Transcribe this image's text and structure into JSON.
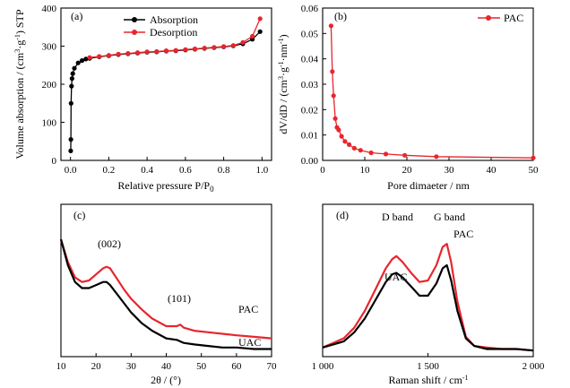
{
  "chart_data": [
    {
      "panel": "(a)",
      "type": "line",
      "xlabel": "Relative pressure P/P",
      "xlabel_sub": "0",
      "ylabel": "Volume absorption / (cm",
      "ylabel_sup": "3",
      "ylabel_mid": "·g",
      "ylabel_sup2": "-1",
      "ylabel_end": ") STP",
      "xlim": [
        -0.05,
        1.05
      ],
      "ylim": [
        0,
        400
      ],
      "xticks": [
        "0.0",
        "0.2",
        "0.4",
        "0.6",
        "0.8",
        "1.0"
      ],
      "yticks": [
        "0",
        "100",
        "200",
        "300",
        "400"
      ],
      "legend_position": "top-center",
      "series": [
        {
          "name": "Absorption",
          "color": "#000000",
          "x": [
            0.001,
            0.002,
            0.003,
            0.005,
            0.008,
            0.012,
            0.02,
            0.04,
            0.06,
            0.08,
            0.1,
            0.15,
            0.2,
            0.25,
            0.3,
            0.35,
            0.4,
            0.45,
            0.5,
            0.55,
            0.6,
            0.65,
            0.7,
            0.75,
            0.8,
            0.85,
            0.9,
            0.95,
            0.99
          ],
          "y": [
            25,
            55,
            150,
            195,
            215,
            228,
            242,
            256,
            262,
            266,
            268,
            272,
            275,
            278,
            280,
            282,
            284,
            285,
            287,
            288,
            290,
            292,
            294,
            296,
            298,
            301,
            306,
            318,
            338
          ]
        },
        {
          "name": "Desorption",
          "color": "#e8262d",
          "x": [
            0.99,
            0.95,
            0.9,
            0.85,
            0.8,
            0.75,
            0.7,
            0.65,
            0.6,
            0.55,
            0.5,
            0.45,
            0.4,
            0.35,
            0.3,
            0.25,
            0.2,
            0.15,
            0.1
          ],
          "y": [
            372,
            326,
            310,
            302,
            299,
            297,
            295,
            293,
            291,
            289,
            288,
            286,
            285,
            283,
            281,
            279,
            276,
            273,
            270
          ]
        }
      ]
    },
    {
      "panel": "(b)",
      "type": "line",
      "xlabel": "Pore dimaeter / nm",
      "ylabel": "dV/dD / (cm",
      "xlim": [
        0,
        50
      ],
      "ylim": [
        0,
        0.06
      ],
      "xticks": [
        "0",
        "10",
        "20",
        "30",
        "40",
        "50"
      ],
      "yticks": [
        "0.00",
        "0.01",
        "0.02",
        "0.03",
        "0.04",
        "0.05",
        "0.06"
      ],
      "legend_position": "top-right",
      "series": [
        {
          "name": "PAC",
          "color": "#e8262d",
          "x": [
            2.0,
            2.3,
            2.6,
            3.0,
            3.4,
            3.8,
            4.5,
            5.3,
            6.3,
            7.5,
            9.0,
            11.5,
            15.0,
            19.5,
            27.0,
            50.0
          ],
          "y": [
            0.053,
            0.035,
            0.0255,
            0.0165,
            0.013,
            0.012,
            0.0095,
            0.0075,
            0.0062,
            0.0048,
            0.004,
            0.003,
            0.0025,
            0.002,
            0.0015,
            0.001
          ]
        }
      ]
    },
    {
      "panel": "(c)",
      "type": "line",
      "xlabel": "2θ / (°)",
      "xlim": [
        10,
        70
      ],
      "ylim": [
        0,
        1
      ],
      "xticks": [
        "10",
        "20",
        "30",
        "40",
        "50",
        "60",
        "70"
      ],
      "annotations": [
        "(002)",
        "(101)"
      ],
      "series": [
        {
          "name": "PAC",
          "color": "#e8262d",
          "x": [
            10,
            12,
            14,
            16,
            18,
            20,
            22,
            23,
            24,
            26,
            28,
            30,
            33,
            36,
            40,
            43,
            44,
            45,
            48,
            52,
            56,
            60,
            65,
            70
          ],
          "y": [
            0.77,
            0.62,
            0.52,
            0.49,
            0.5,
            0.54,
            0.58,
            0.59,
            0.58,
            0.51,
            0.44,
            0.38,
            0.31,
            0.25,
            0.2,
            0.2,
            0.21,
            0.19,
            0.17,
            0.16,
            0.15,
            0.14,
            0.13,
            0.12
          ]
        },
        {
          "name": "UAC",
          "color": "#000000",
          "x": [
            10,
            12,
            14,
            16,
            18,
            20,
            22,
            23,
            24,
            26,
            28,
            30,
            33,
            36,
            40,
            43,
            45,
            48,
            52,
            56,
            60,
            65,
            70
          ],
          "y": [
            0.77,
            0.6,
            0.49,
            0.45,
            0.45,
            0.47,
            0.49,
            0.49,
            0.47,
            0.41,
            0.35,
            0.29,
            0.22,
            0.17,
            0.12,
            0.11,
            0.09,
            0.08,
            0.07,
            0.06,
            0.06,
            0.05,
            0.05
          ]
        }
      ]
    },
    {
      "panel": "(d)",
      "type": "line",
      "xlabel": "Raman shift / cm",
      "xlabel_sup": "-1",
      "xlim": [
        1000,
        2000
      ],
      "ylim": [
        0,
        1
      ],
      "xticks": [
        "1 000",
        "1 500",
        "2 000"
      ],
      "annotations": [
        "D band",
        "G band"
      ],
      "series": [
        {
          "name": "PAC",
          "color": "#e8262d",
          "x": [
            1000,
            1050,
            1100,
            1150,
            1200,
            1250,
            1300,
            1330,
            1350,
            1380,
            1420,
            1460,
            1500,
            1540,
            1570,
            1590,
            1610,
            1640,
            1680,
            1720,
            1780,
            1850,
            1920,
            2000
          ],
          "y": [
            0.06,
            0.09,
            0.12,
            0.19,
            0.3,
            0.44,
            0.58,
            0.64,
            0.66,
            0.62,
            0.55,
            0.49,
            0.5,
            0.6,
            0.72,
            0.74,
            0.62,
            0.36,
            0.13,
            0.07,
            0.06,
            0.05,
            0.05,
            0.04
          ]
        },
        {
          "name": "UAC",
          "color": "#000000",
          "x": [
            1000,
            1050,
            1100,
            1150,
            1200,
            1250,
            1300,
            1330,
            1350,
            1380,
            1420,
            1460,
            1500,
            1540,
            1570,
            1590,
            1610,
            1640,
            1680,
            1720,
            1780,
            1850,
            1920,
            2000
          ],
          "y": [
            0.06,
            0.08,
            0.1,
            0.16,
            0.25,
            0.37,
            0.49,
            0.54,
            0.55,
            0.52,
            0.46,
            0.4,
            0.4,
            0.48,
            0.58,
            0.6,
            0.5,
            0.3,
            0.12,
            0.07,
            0.05,
            0.05,
            0.05,
            0.04
          ]
        }
      ]
    }
  ]
}
